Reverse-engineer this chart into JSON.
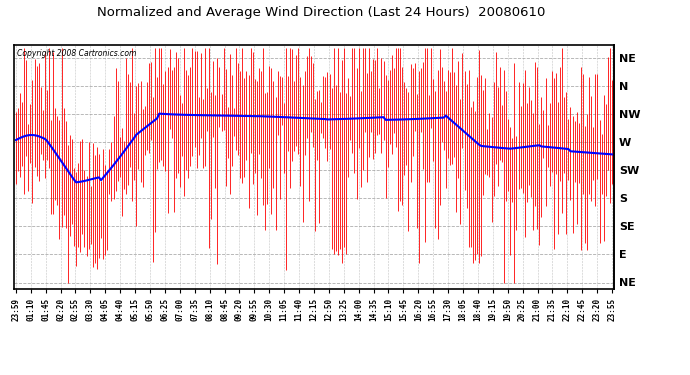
{
  "title": "Normalized and Average Wind Direction (Last 24 Hours)  20080610",
  "copyright": "Copyright 2008 Cartronics.com",
  "background_color": "#ffffff",
  "plot_bg_color": "#ffffff",
  "grid_color": "#999999",
  "red_color": "#ff0000",
  "blue_color": "#0000ff",
  "ytick_labels": [
    "NE",
    "N",
    "NW",
    "W",
    "SW",
    "S",
    "SE",
    "E",
    "NE"
  ],
  "ytick_values": [
    360,
    315,
    270,
    225,
    180,
    135,
    90,
    45,
    0
  ],
  "ylim": [
    -10,
    380
  ],
  "xtick_labels": [
    "23:59",
    "01:10",
    "01:45",
    "02:20",
    "02:55",
    "03:30",
    "04:05",
    "04:40",
    "05:15",
    "05:50",
    "06:25",
    "07:00",
    "07:35",
    "08:10",
    "08:45",
    "09:20",
    "09:55",
    "10:30",
    "11:05",
    "11:40",
    "12:15",
    "12:50",
    "13:25",
    "14:00",
    "14:35",
    "15:10",
    "15:45",
    "16:20",
    "16:55",
    "17:30",
    "18:05",
    "18:40",
    "19:15",
    "19:50",
    "20:25",
    "21:00",
    "21:35",
    "22:10",
    "22:45",
    "23:20",
    "23:55"
  ],
  "n_points": 288,
  "seed": 12345
}
